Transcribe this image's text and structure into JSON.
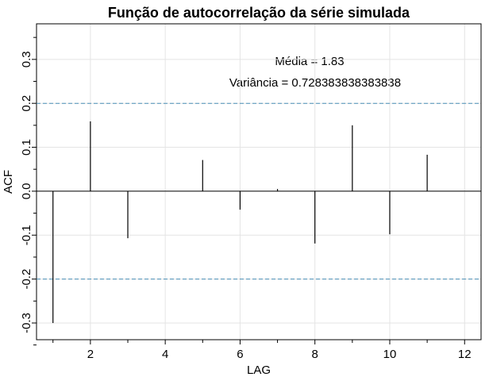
{
  "chart_data": {
    "type": "acf",
    "title": "Função de autocorrelação da série simulada",
    "x_label": "LAG",
    "y_label": "ACF",
    "annotations": [
      "Média =  1.83",
      "Variância =  0.728383838383838"
    ],
    "x": [
      1,
      2,
      3,
      4,
      5,
      6,
      7,
      8,
      9,
      10,
      11,
      12
    ],
    "values": [
      -0.3,
      0.159,
      -0.107,
      0.0,
      0.071,
      -0.042,
      0.005,
      -0.119,
      0.15,
      -0.098,
      0.083,
      0.0
    ],
    "color": "#000000",
    "xlim": [
      0.56,
      12.44
    ],
    "ylim": [
      -0.338,
      0.381
    ],
    "xticks": [
      2,
      4,
      6,
      8,
      10,
      12
    ],
    "xticks_minor": [
      1,
      3,
      5,
      7,
      9,
      11
    ],
    "yticks": [
      -0.3,
      -0.2,
      -0.1,
      {
        "value": 0,
        "label": "0.0"
      },
      0.1,
      0.2,
      0.3
    ],
    "yticks_minor": [
      -0.35,
      -0.25,
      -0.15,
      -0.05,
      0.05,
      0.15,
      0.25,
      0.35
    ],
    "bounds": [
      0.2,
      -0.2
    ],
    "bounds_color": "#4a90b8",
    "grid": true
  }
}
